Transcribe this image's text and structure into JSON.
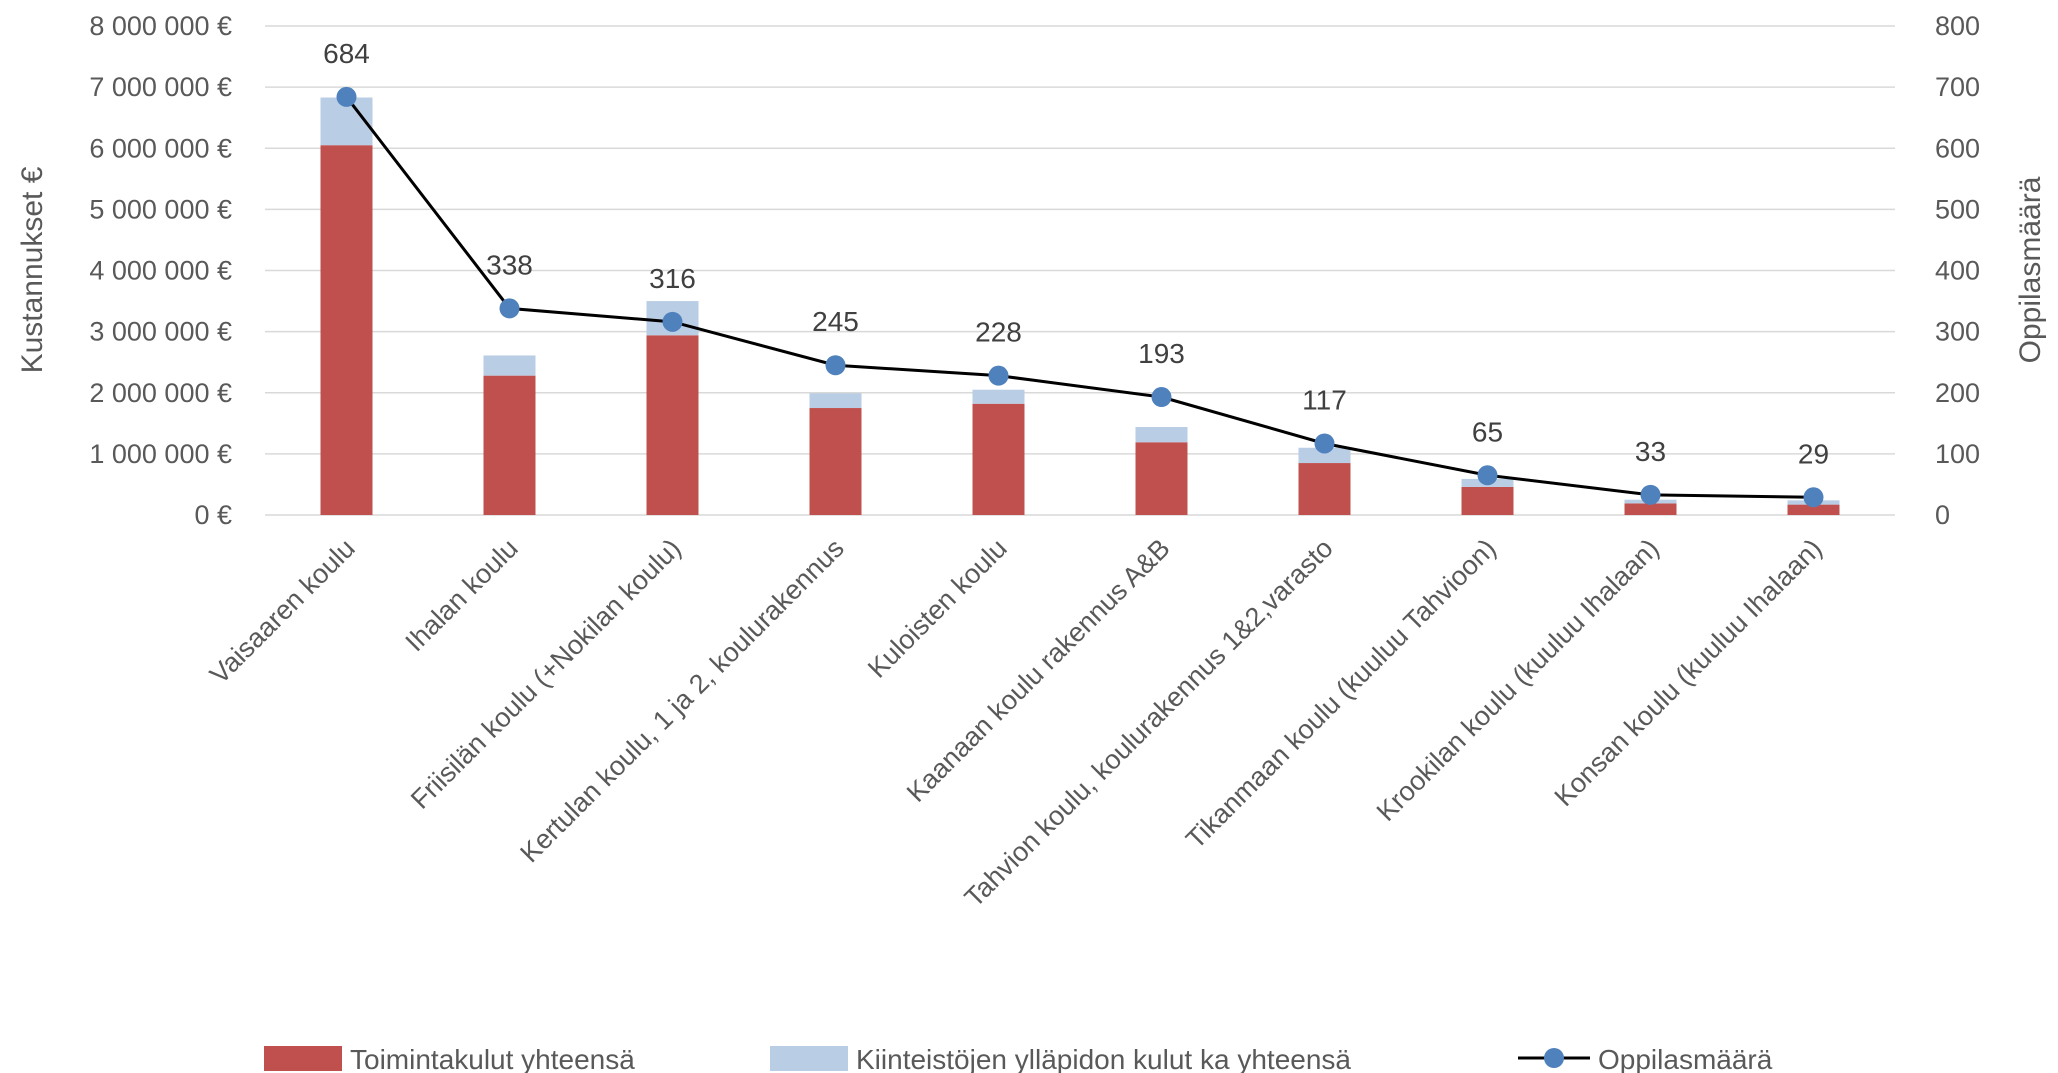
{
  "chart_data": {
    "type": "bar",
    "stacked": true,
    "categories": [
      "Vaisaaren koulu",
      "Ihalan koulu",
      "Friisilän koulu (+Nokilan koulu)",
      "Kertulan koulu, 1 ja 2, koulurakennus",
      "Kuloisten koulu",
      "Kaanaan koulu rakennus A&B",
      "Tahvion koulu, koulurakennus 1&2,varasto",
      "Tikanmaan koulu (kuuluu Tahvioon)",
      "Krookilan koulu (kuuluu Ihalaan)",
      "Konsan koulu (kuuluu Ihalaan)"
    ],
    "series": [
      {
        "name": "Toimintakulut yhteensä",
        "type": "bar",
        "axis": "left",
        "color": "#c0504d",
        "values": [
          6050000,
          2280000,
          2940000,
          1750000,
          1820000,
          1190000,
          850000,
          460000,
          190000,
          170000
        ]
      },
      {
        "name": "Kiinteistöjen ylläpidon kulut ka yhteensä",
        "type": "bar",
        "axis": "left",
        "color": "#b9cde5",
        "values": [
          780000,
          330000,
          560000,
          240000,
          230000,
          250000,
          250000,
          130000,
          60000,
          70000
        ]
      },
      {
        "name": "Oppilasmäärä",
        "type": "line",
        "axis": "right",
        "color": "#4f81bd",
        "line_color": "#000000",
        "values": [
          684,
          338,
          316,
          245,
          228,
          193,
          117,
          65,
          33,
          29
        ],
        "data_labels": [
          "684",
          "338",
          "316",
          "245",
          "228",
          "193",
          "117",
          "65",
          "33",
          "29"
        ]
      }
    ],
    "ylabel": "Kustannukset €",
    "y2label": "Oppilasmäärä",
    "ylim": [
      0,
      8000000
    ],
    "y2lim": [
      0,
      800
    ],
    "yticks": [
      "0 €",
      "1 000 000 €",
      "2 000 000 €",
      "3 000 000 €",
      "4 000 000 €",
      "5 000 000 €",
      "6 000 000 €",
      "7 000 000 €",
      "8 000 000 €"
    ],
    "y2ticks": [
      "0",
      "100",
      "200",
      "300",
      "400",
      "500",
      "600",
      "700",
      "800"
    ],
    "grid": true,
    "legend_position": "bottom"
  }
}
